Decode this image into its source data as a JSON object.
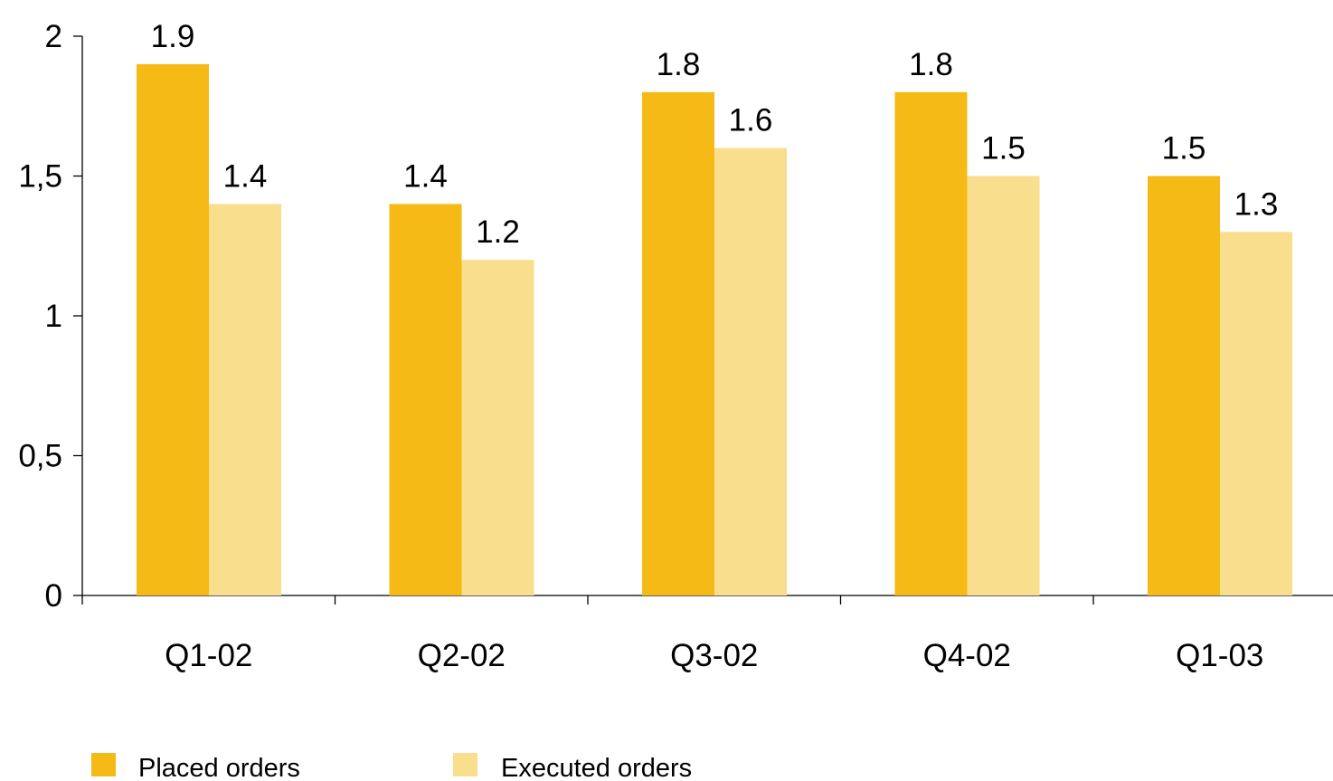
{
  "chart_data": {
    "type": "bar",
    "categories": [
      "Q1-02",
      "Q2-02",
      "Q3-02",
      "Q4-02",
      "Q1-03"
    ],
    "series": [
      {
        "name": "Placed orders",
        "values": [
          1.9,
          1.4,
          1.8,
          1.8,
          1.5
        ],
        "value_labels": [
          "1.9",
          "1.4",
          "1.8",
          "1.8",
          "1.5"
        ],
        "color": "#F5BA16"
      },
      {
        "name": "Executed orders",
        "values": [
          1.4,
          1.2,
          1.6,
          1.5,
          1.3
        ],
        "value_labels": [
          "1.4",
          "1.2",
          "1.6",
          "1.5",
          "1.3"
        ],
        "color": "#F9DE8E"
      }
    ],
    "yticks": [
      0,
      0.5,
      1,
      1.5,
      2
    ],
    "ytick_labels": [
      "0",
      "0,5",
      "1",
      "1,5",
      "2"
    ],
    "ylim": [
      0,
      2
    ],
    "title": "",
    "xlabel": "",
    "ylabel": "",
    "grid": false,
    "legend_position": "bottom-left"
  }
}
